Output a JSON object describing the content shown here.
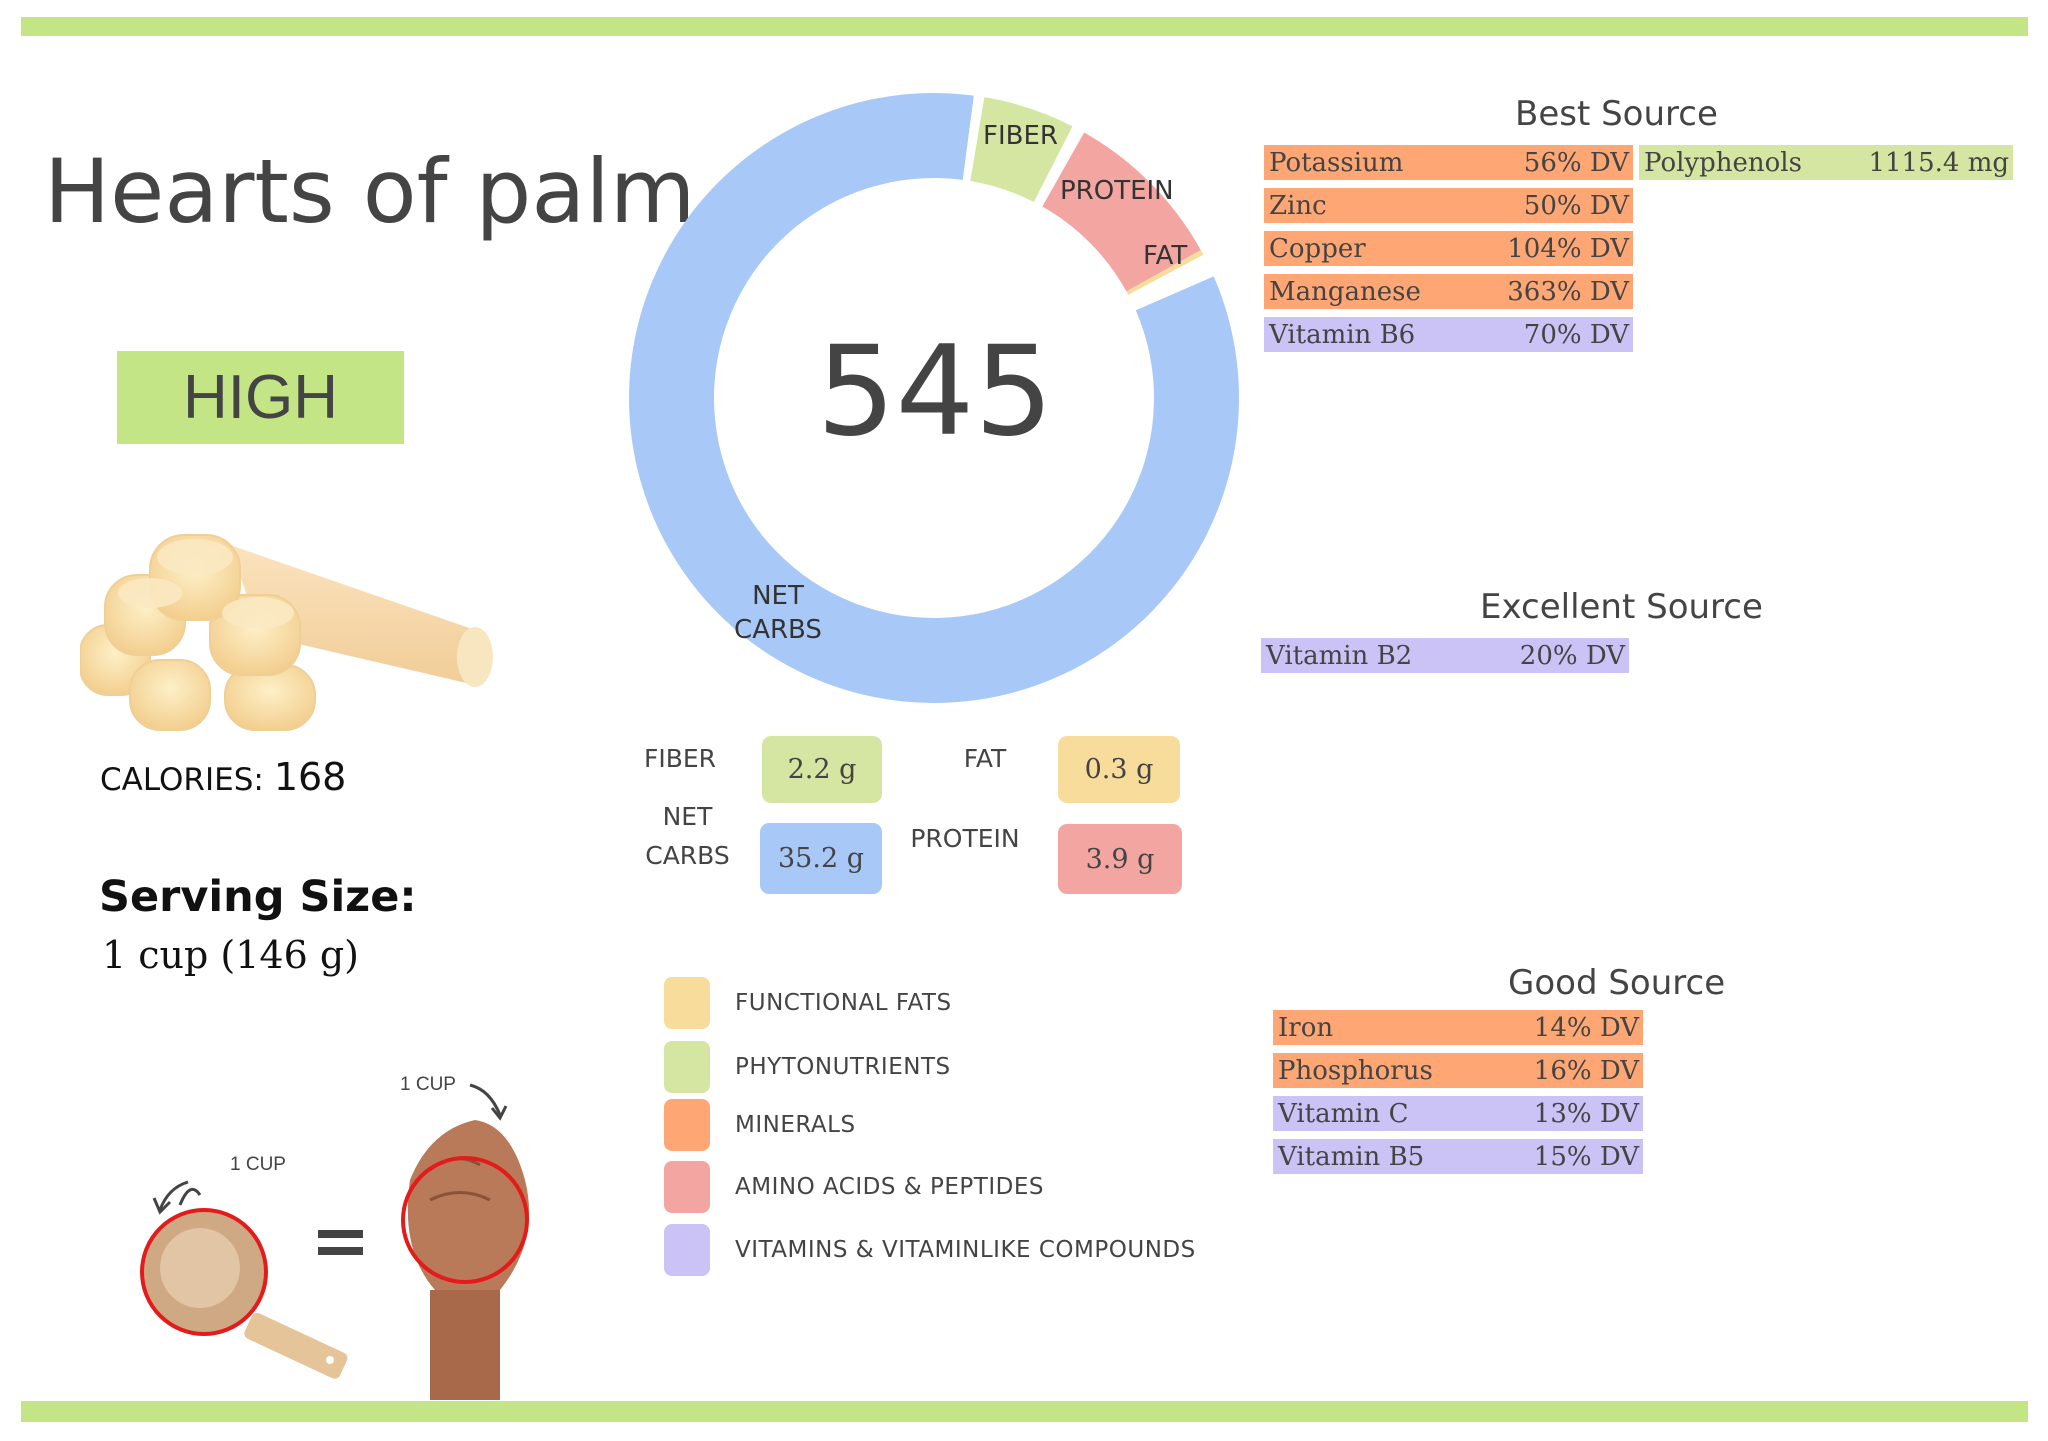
{
  "food": {
    "name": "Hearts of palm",
    "rating": "HIGH",
    "calories_label": "CALORIES:",
    "calories_value": "168",
    "serving_label": "Serving Size:",
    "serving_value": "1 cup (146 g)",
    "image_icon": "hearts-of-palm-photo",
    "illustration": {
      "cup_label": "1 CUP",
      "fist_label": "1 CUP",
      "equals": "="
    }
  },
  "colors": {
    "accent_green": "#c3e586",
    "net_carbs": "#a8c8f8",
    "fiber": "#d5e6a2",
    "protein": "#f3a6a1",
    "fat": "#f8dc9b",
    "minerals": "#fea774",
    "vitamins": "#cbc2f6",
    "phytonutrients": "#d5e6a2",
    "text": "#444444"
  },
  "chart_data": {
    "type": "pie",
    "title": "545",
    "center_value": "545",
    "categories": [
      "NET CARBS",
      "FIBER",
      "PROTEIN",
      "FAT"
    ],
    "values": [
      35.2,
      2.2,
      3.9,
      0.3
    ],
    "units": "g",
    "segments": [
      {
        "label": "NET CARBS",
        "value": 35.2,
        "start_deg": 66.5,
        "end_deg": 367.5,
        "color": "#a8c8f8"
      },
      {
        "label": "FIBER",
        "value": 2.2,
        "start_deg": 9.5,
        "end_deg": 27.0,
        "color": "#d5e6a2"
      },
      {
        "label": "PROTEIN",
        "value": 3.9,
        "start_deg": 29.5,
        "end_deg": 61.0,
        "color": "#f3a6a1"
      },
      {
        "label": "FAT",
        "value": 0.3,
        "start_deg": 61.0,
        "end_deg": 62.0,
        "color": "#f8dc9b"
      }
    ],
    "legend_position": "none"
  },
  "donut_labels": {
    "net_carbs_line1": "NET",
    "net_carbs_line2": "CARBS",
    "fiber": "FIBER",
    "protein": "PROTEIN",
    "fat": "FAT"
  },
  "macros": {
    "fiber": {
      "label": "FIBER",
      "value": "2.2 g"
    },
    "fat": {
      "label": "FAT",
      "value": "0.3 g"
    },
    "net_carbs": {
      "label_line1": "NET",
      "label_line2": "CARBS",
      "value": "35.2 g"
    },
    "protein": {
      "label": "PROTEIN",
      "value": "3.9 g"
    }
  },
  "legend": [
    {
      "label": "FUNCTIONAL  FATS",
      "color": "#f8dc9b"
    },
    {
      "label": "PHYTONUTRIENTS",
      "color": "#d5e6a2"
    },
    {
      "label": "MINERALS",
      "color": "#fea774"
    },
    {
      "label": "AMINO ACIDS & PEPTIDES",
      "color": "#f3a6a1"
    },
    {
      "label": "VITAMINS & VITAMINLIKE COMPOUNDS",
      "color": "#cbc2f6"
    }
  ],
  "best_source": {
    "title": "Best Source",
    "items": [
      {
        "name": "Potassium",
        "value": "56% DV"
      },
      {
        "name": "Zinc",
        "value": "50% DV"
      },
      {
        "name": "Copper",
        "value": "104% DV"
      },
      {
        "name": "Manganese",
        "value": "363% DV"
      },
      {
        "name": "Vitamin B6",
        "value": "70% DV"
      }
    ],
    "side_item": {
      "name": "Polyphenols",
      "value": "1115.4 mg"
    }
  },
  "excellent_source": {
    "title": "Excellent Source",
    "items": [
      {
        "name": "Vitamin B2",
        "value": "20% DV"
      }
    ]
  },
  "good_source": {
    "title": "Good Source",
    "items": [
      {
        "name": "Iron",
        "value": "14% DV"
      },
      {
        "name": "Phosphorus",
        "value": "16% DV"
      },
      {
        "name": "Vitamin C",
        "value": "13% DV"
      },
      {
        "name": "Vitamin B5",
        "value": "15% DV"
      }
    ]
  }
}
